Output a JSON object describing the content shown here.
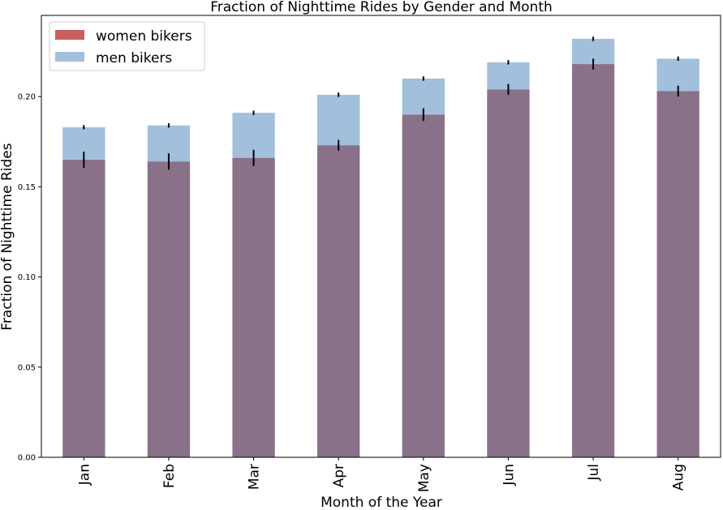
{
  "chart_data": {
    "type": "bar",
    "title": "Fraction of Nighttime Rides by Gender and Month",
    "xlabel": "Month of the Year",
    "ylabel": "Fraction of Nighttime Rides",
    "categories": [
      "Jan",
      "Feb",
      "Mar",
      "Apr",
      "May",
      "Jun",
      "Jul",
      "Aug"
    ],
    "ylim": [
      0,
      0.245
    ],
    "yticks": [
      0.0,
      0.05,
      0.1,
      0.15,
      0.2
    ],
    "ytick_labels": [
      "0.00",
      "0.05",
      "0.10",
      "0.15",
      "0.20"
    ],
    "grid": false,
    "legend_position": "top-left",
    "series": [
      {
        "name": "men bikers",
        "color": "#a2bfdb",
        "values": [
          0.183,
          0.184,
          0.191,
          0.201,
          0.21,
          0.219,
          0.232,
          0.221
        ],
        "errors": [
          0.0012,
          0.0012,
          0.0012,
          0.0012,
          0.0012,
          0.0012,
          0.0012,
          0.0012
        ]
      },
      {
        "name": "women bikers",
        "color": "#c85f5f",
        "overlap_color": "#897189",
        "values": [
          0.165,
          0.164,
          0.166,
          0.173,
          0.19,
          0.204,
          0.218,
          0.203
        ],
        "errors": [
          0.0045,
          0.0045,
          0.0045,
          0.003,
          0.0035,
          0.003,
          0.003,
          0.003
        ]
      }
    ],
    "legend": [
      {
        "label": "women bikers",
        "color": "#c85f5f"
      },
      {
        "label": "men bikers",
        "color": "#a2bfdb"
      }
    ]
  }
}
